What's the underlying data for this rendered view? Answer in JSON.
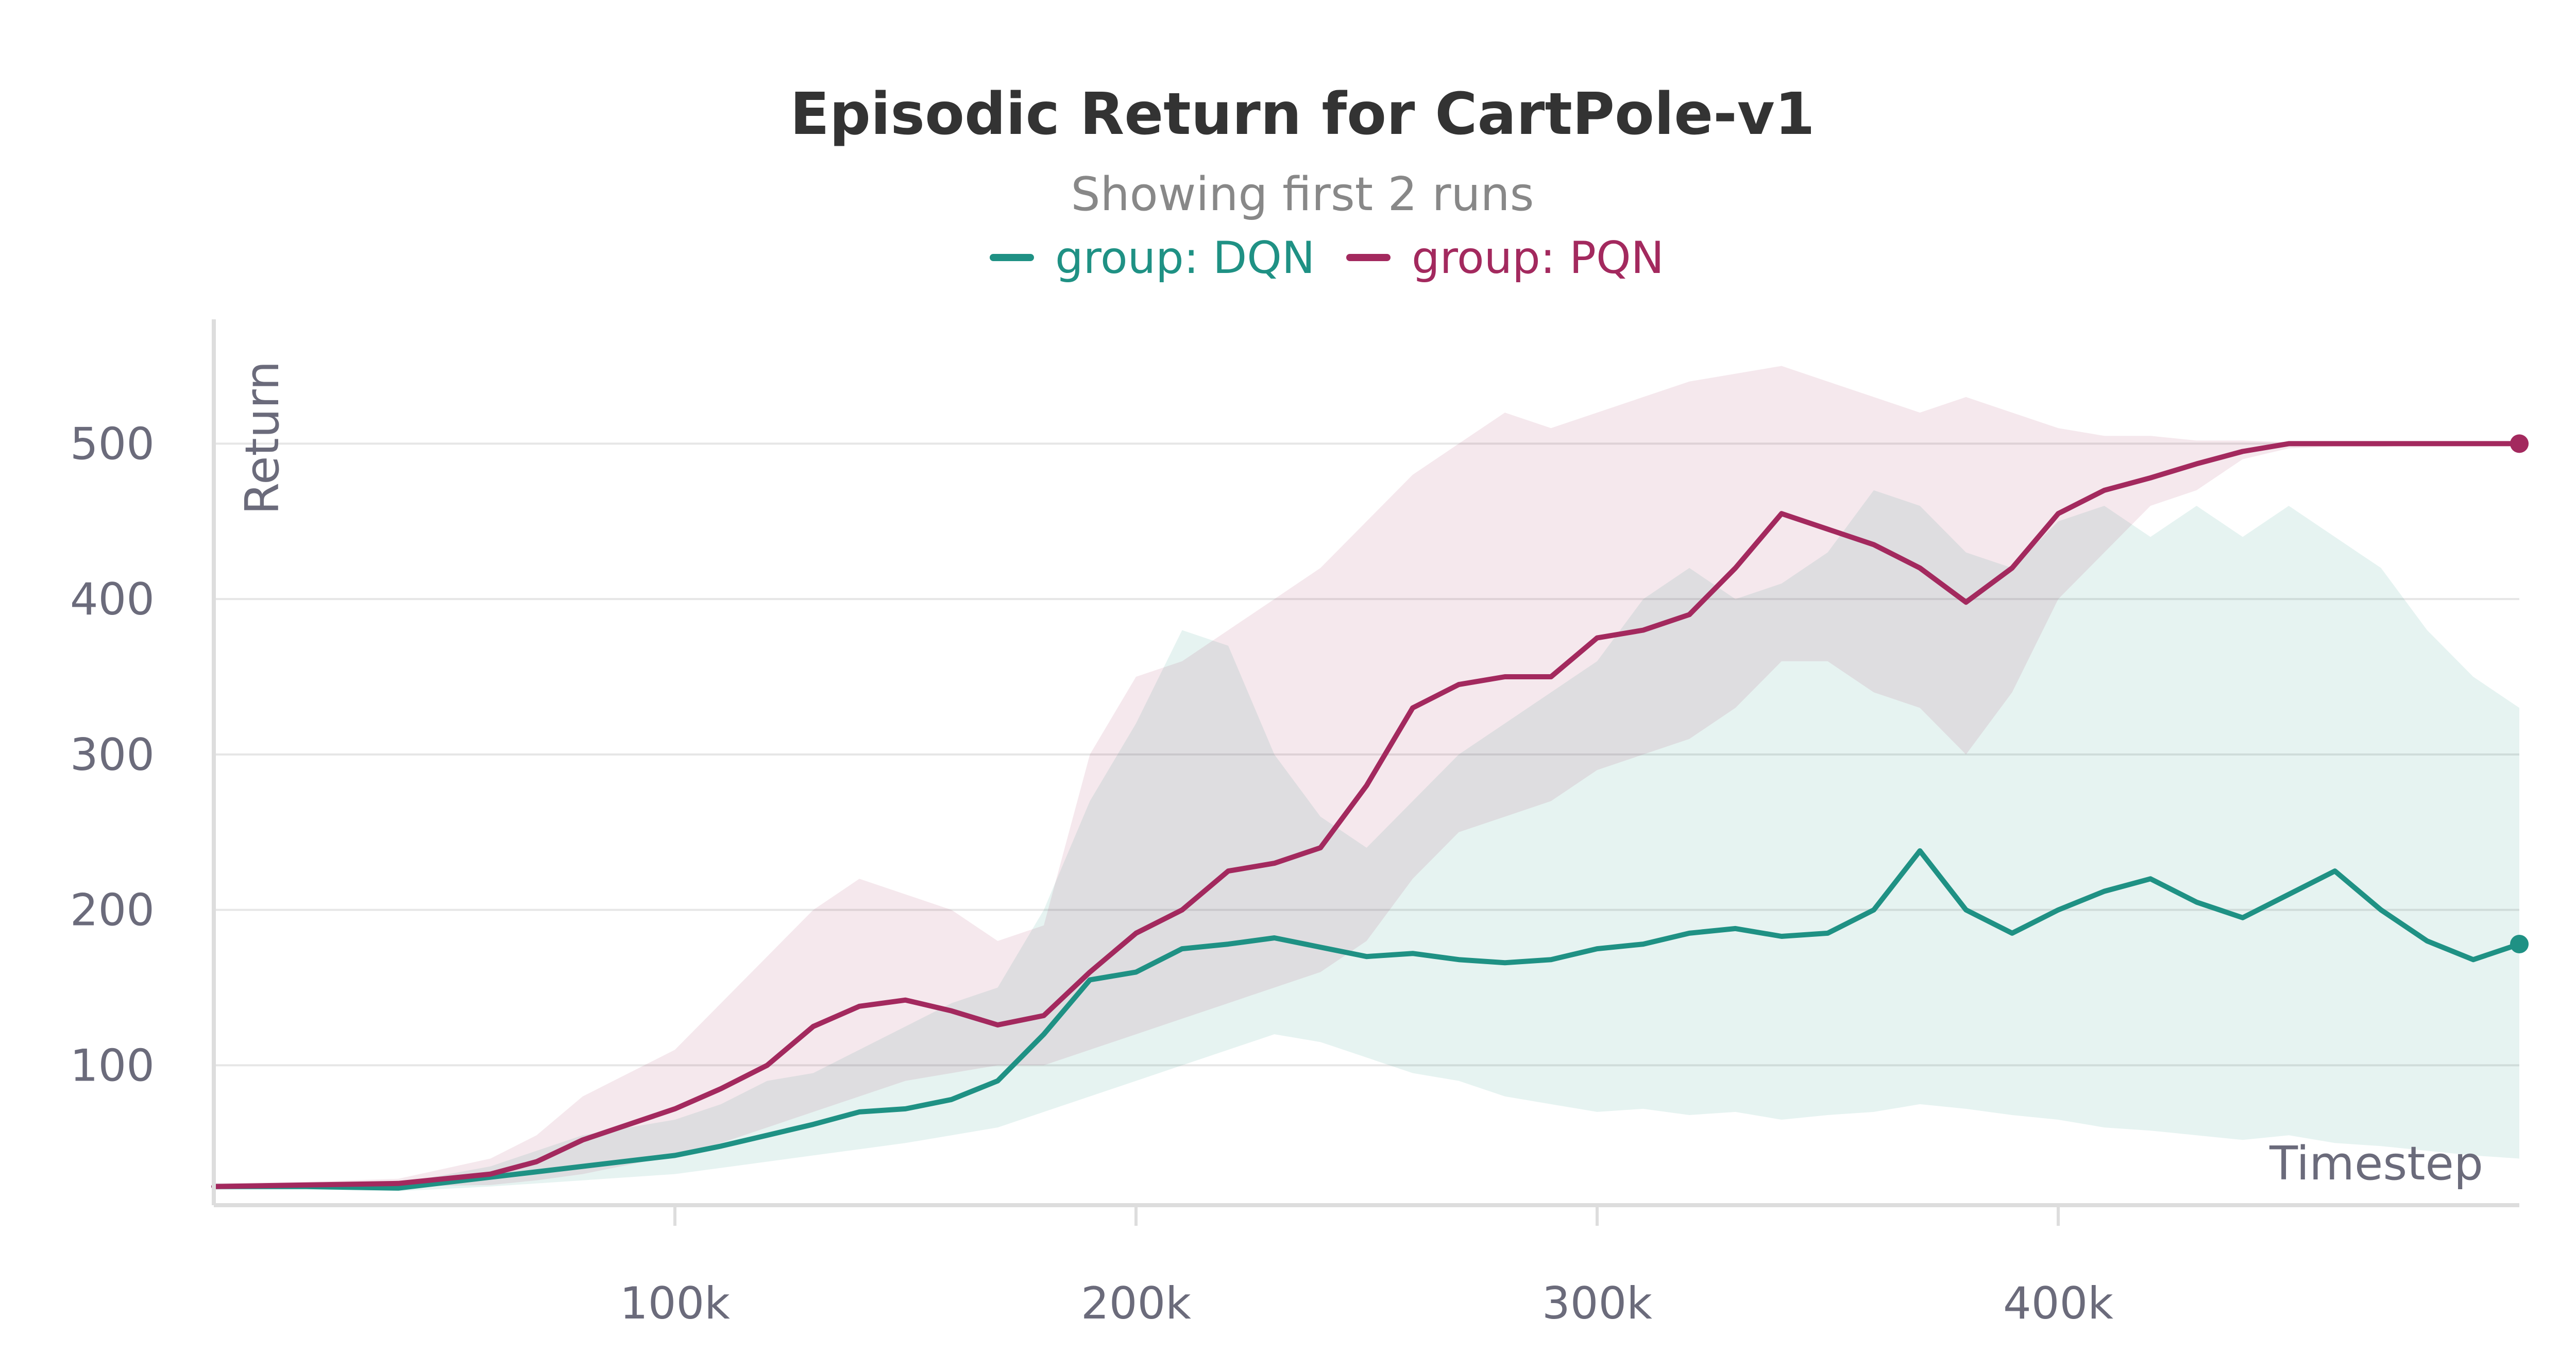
{
  "chart_data": {
    "type": "line",
    "title": "Episodic Return for CartPole-v1",
    "subtitle": "Showing first 2 runs",
    "xlabel": "Timestep",
    "ylabel": "Return",
    "xlim": [
      0,
      500000
    ],
    "ylim": [
      10,
      580
    ],
    "x_ticks": [
      100000,
      200000,
      300000,
      400000
    ],
    "x_tick_labels": [
      "100k",
      "200k",
      "300k",
      "400k"
    ],
    "y_ticks": [
      100,
      200,
      300,
      400,
      500
    ],
    "y_tick_labels": [
      "100",
      "200",
      "300",
      "400",
      "500"
    ],
    "grid": "horizontal",
    "legend": "top-center",
    "series": [
      {
        "name": "group: DQN",
        "color": "#1f9184",
        "x": [
          0,
          20000,
          40000,
          60000,
          80000,
          100000,
          110000,
          120000,
          130000,
          140000,
          150000,
          160000,
          170000,
          180000,
          190000,
          200000,
          210000,
          220000,
          230000,
          240000,
          250000,
          260000,
          270000,
          280000,
          290000,
          300000,
          310000,
          320000,
          330000,
          340000,
          350000,
          360000,
          370000,
          380000,
          390000,
          400000,
          410000,
          420000,
          430000,
          440000,
          450000,
          460000,
          470000,
          480000,
          490000,
          500000
        ],
        "values": [
          22,
          22,
          21,
          28,
          35,
          42,
          48,
          55,
          62,
          70,
          72,
          78,
          90,
          120,
          155,
          160,
          175,
          178,
          182,
          176,
          170,
          172,
          168,
          166,
          168,
          175,
          178,
          185,
          188,
          183,
          185,
          200,
          238,
          200,
          185,
          200,
          212,
          220,
          205,
          195,
          210,
          225,
          200,
          180,
          168,
          178
        ],
        "band_upper": [
          24,
          24,
          24,
          35,
          55,
          65,
          75,
          90,
          95,
          110,
          125,
          140,
          150,
          200,
          270,
          320,
          380,
          370,
          300,
          260,
          240,
          270,
          300,
          320,
          340,
          360,
          400,
          420,
          400,
          410,
          430,
          470,
          460,
          430,
          420,
          450,
          460,
          440,
          460,
          440,
          460,
          440,
          420,
          380,
          350,
          330
        ],
        "band_lower": [
          20,
          20,
          19,
          22,
          26,
          30,
          34,
          38,
          42,
          46,
          50,
          55,
          60,
          70,
          80,
          90,
          100,
          110,
          120,
          115,
          105,
          95,
          90,
          80,
          75,
          70,
          72,
          68,
          70,
          65,
          68,
          70,
          75,
          72,
          68,
          65,
          60,
          58,
          55,
          52,
          55,
          50,
          48,
          45,
          42,
          40
        ]
      },
      {
        "name": "group: PQN",
        "color": "#a3295e",
        "x": [
          0,
          20000,
          40000,
          60000,
          70000,
          80000,
          90000,
          100000,
          110000,
          120000,
          130000,
          140000,
          150000,
          160000,
          170000,
          180000,
          190000,
          200000,
          210000,
          220000,
          230000,
          240000,
          250000,
          260000,
          270000,
          280000,
          290000,
          300000,
          310000,
          320000,
          330000,
          340000,
          350000,
          360000,
          370000,
          380000,
          390000,
          400000,
          410000,
          420000,
          430000,
          440000,
          450000,
          460000,
          470000,
          480000,
          490000,
          500000
        ],
        "values": [
          22,
          23,
          24,
          30,
          38,
          52,
          62,
          72,
          85,
          100,
          125,
          138,
          142,
          135,
          126,
          132,
          160,
          185,
          200,
          225,
          230,
          240,
          280,
          330,
          345,
          350,
          350,
          375,
          380,
          390,
          420,
          455,
          445,
          435,
          420,
          398,
          420,
          455,
          470,
          478,
          487,
          495,
          500,
          500,
          500,
          500,
          500,
          500
        ],
        "band_upper": [
          24,
          25,
          27,
          40,
          55,
          80,
          95,
          110,
          140,
          170,
          200,
          220,
          210,
          200,
          180,
          190,
          300,
          350,
          360,
          380,
          400,
          420,
          450,
          480,
          500,
          520,
          510,
          520,
          530,
          540,
          545,
          550,
          540,
          530,
          520,
          530,
          520,
          510,
          505,
          505,
          502,
          502,
          501,
          501,
          501,
          501,
          501,
          501
        ],
        "band_lower": [
          20,
          21,
          22,
          23,
          26,
          30,
          36,
          42,
          50,
          60,
          70,
          80,
          90,
          95,
          100,
          100,
          110,
          120,
          130,
          140,
          150,
          160,
          180,
          220,
          250,
          260,
          270,
          290,
          300,
          310,
          330,
          360,
          360,
          340,
          330,
          300,
          340,
          400,
          430,
          460,
          470,
          490,
          497,
          498,
          498,
          499,
          499,
          499
        ]
      }
    ]
  }
}
